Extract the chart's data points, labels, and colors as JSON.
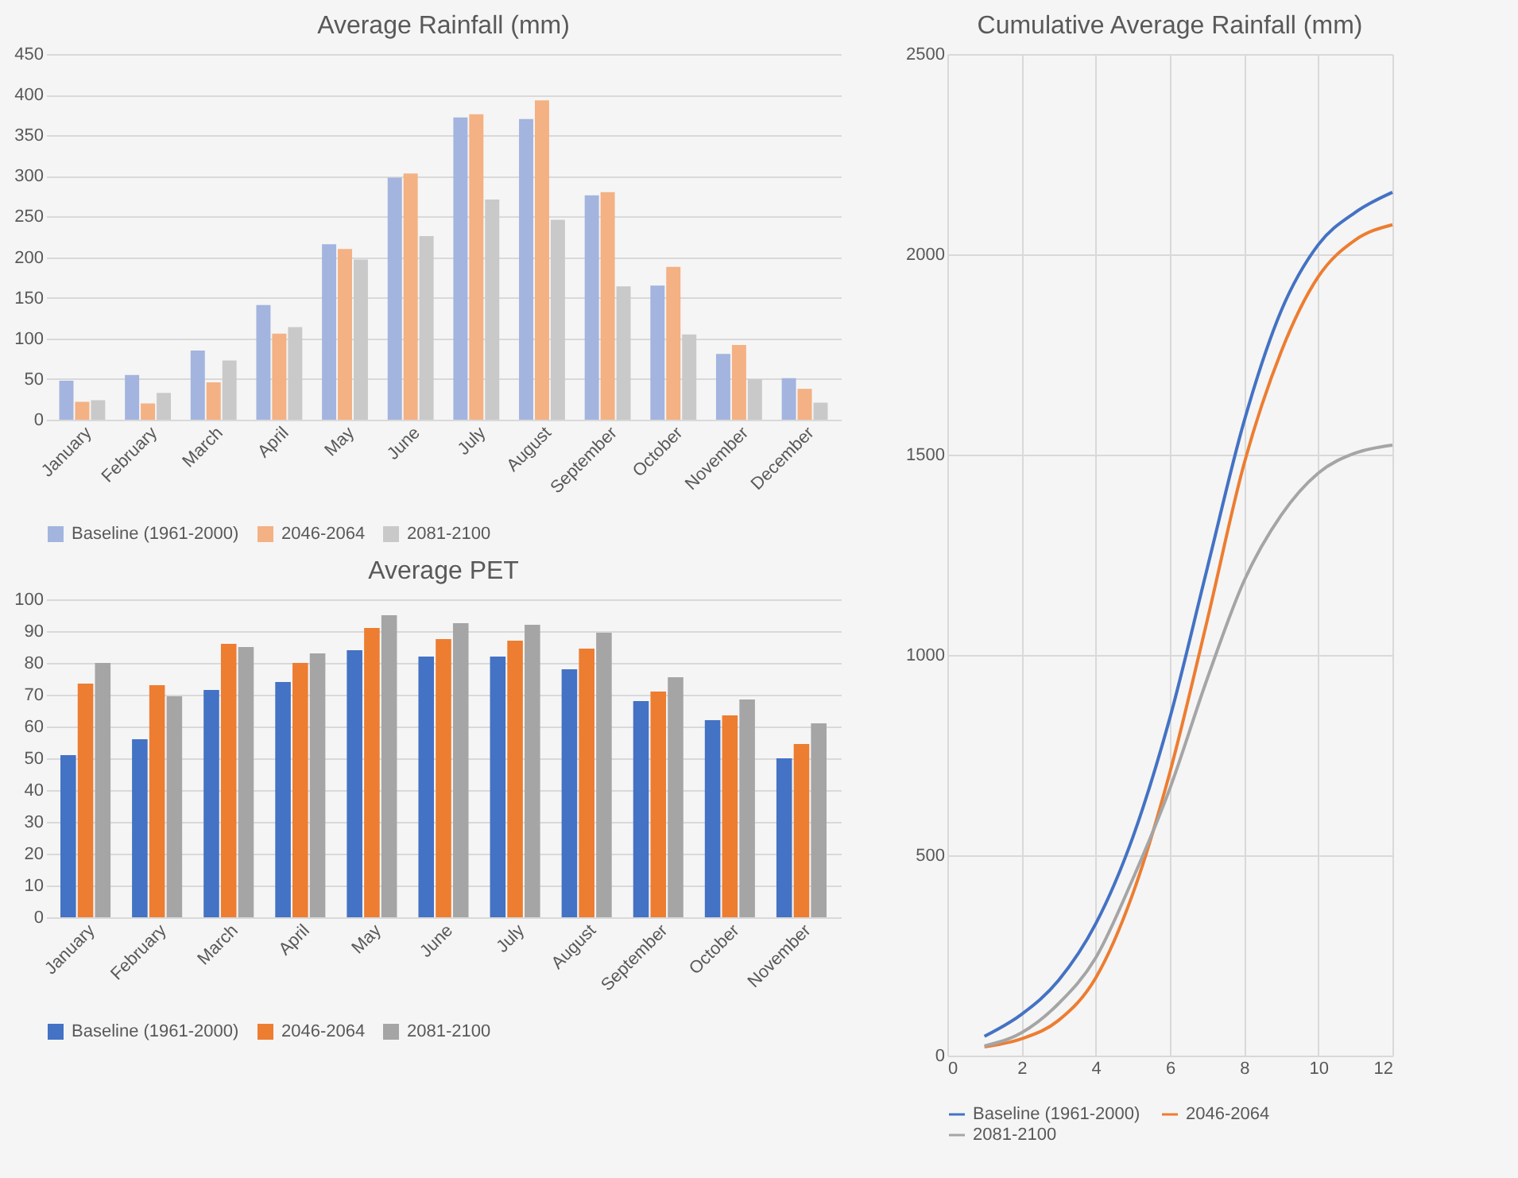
{
  "chart_data": [
    {
      "type": "bar",
      "title": "Average Rainfall (mm)",
      "categories": [
        "January",
        "February",
        "March",
        "April",
        "May",
        "June",
        "July",
        "August",
        "September",
        "October",
        "November",
        "December"
      ],
      "ylim": [
        0,
        450
      ],
      "yticks": [
        0,
        50,
        100,
        150,
        200,
        250,
        300,
        350,
        400,
        450
      ],
      "grid": "y",
      "legend": "bottom",
      "series": [
        {
          "name": "Baseline (1961-2000)",
          "color": "#a3b4de",
          "values": [
            48,
            55,
            85,
            141,
            216,
            298,
            372,
            370,
            276,
            165,
            81,
            51
          ]
        },
        {
          "name": "2046-2064",
          "color": "#f4b183",
          "values": [
            22,
            20,
            46,
            106,
            210,
            303,
            376,
            393,
            280,
            188,
            92,
            38
          ]
        },
        {
          "name": "2081-2100",
          "color": "#c9c9c9",
          "values": [
            24,
            33,
            73,
            114,
            197,
            226,
            271,
            246,
            164,
            105,
            50,
            21
          ]
        }
      ]
    },
    {
      "type": "bar",
      "title": "Average PET",
      "categories": [
        "January",
        "February",
        "March",
        "April",
        "May",
        "June",
        "July",
        "August",
        "September",
        "October",
        "November"
      ],
      "ylim": [
        0,
        100
      ],
      "yticks": [
        0,
        10,
        20,
        30,
        40,
        50,
        60,
        70,
        80,
        90,
        100
      ],
      "grid": "y",
      "legend": "bottom",
      "series": [
        {
          "name": "Baseline (1961-2000)",
          "color": "#4472c4",
          "values": [
            51,
            56,
            71.5,
            74,
            84,
            82,
            82,
            78,
            68,
            62,
            50
          ]
        },
        {
          "name": "2046-2064",
          "color": "#ed7d31",
          "values": [
            73.5,
            73,
            86,
            80,
            91,
            87.5,
            87,
            84.5,
            71,
            63.5,
            54.5
          ]
        },
        {
          "name": "2081-2100",
          "color": "#a5a5a5",
          "values": [
            80,
            69.5,
            85,
            83,
            95,
            92.5,
            92,
            89.5,
            75.5,
            68.5,
            61
          ]
        }
      ]
    },
    {
      "type": "line",
      "title": "Cumulative Average Rainfall (mm)",
      "x": [
        1,
        2,
        3,
        4,
        5,
        6,
        7,
        8,
        9,
        10,
        11,
        12
      ],
      "xlim": [
        0,
        12
      ],
      "xticks": [
        0,
        2,
        4,
        6,
        8,
        10,
        12
      ],
      "ylim": [
        0,
        2500
      ],
      "yticks": [
        0,
        500,
        1000,
        1500,
        2000,
        2500
      ],
      "grid": true,
      "legend": "bottom",
      "series": [
        {
          "name": "Baseline (1961-2000)",
          "color": "#4472c4",
          "values": [
            48,
            103,
            188,
            329,
            545,
            843,
            1214,
            1583,
            1859,
            2024,
            2105,
            2155
          ]
        },
        {
          "name": "2046-2064",
          "color": "#ed7d31",
          "values": [
            22,
            42,
            88,
            194,
            404,
            707,
            1084,
            1477,
            1757,
            1944,
            2036,
            2074
          ]
        },
        {
          "name": "2081-2100",
          "color": "#a5a5a5",
          "values": [
            24,
            57,
            130,
            244,
            441,
            667,
            939,
            1185,
            1349,
            1454,
            1504,
            1524
          ]
        }
      ]
    }
  ]
}
